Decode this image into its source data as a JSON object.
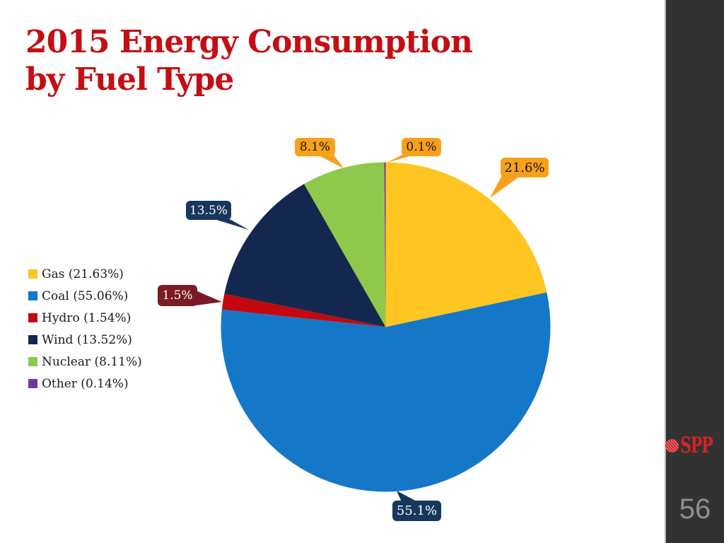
{
  "slide": {
    "title_line1": "2015 Energy Consumption",
    "title_line2": "by Fuel Type",
    "page_number": "56",
    "brand": "SPP"
  },
  "theme": {
    "title_color": "#C40E13",
    "callout_orange": "#F7A11A",
    "callout_navy": "#17375D",
    "callout_maroon": "#7A1B25",
    "sidebar_bg": "#323232",
    "page_number_color": "#8F8F8F",
    "brand_red": "#D2232A"
  },
  "legend": {
    "items": [
      {
        "label": "Gas (21.63%)",
        "color": "#FFC520"
      },
      {
        "label": "Coal (55.06%)",
        "color": "#1577C8"
      },
      {
        "label": "Hydro (1.54%)",
        "color": "#C4090E"
      },
      {
        "label": "Wind (13.52%)",
        "color": "#14284F"
      },
      {
        "label": "Nuclear (8.11%)",
        "color": "#8FC94C"
      },
      {
        "label": "Other (0.14%)",
        "color": "#70369E"
      }
    ]
  },
  "callouts": {
    "gas": "21.6%",
    "coal": "55.1%",
    "hydro": "1.5%",
    "wind": "13.5%",
    "nuclear": "8.1%",
    "other": "0.1%"
  },
  "chart_data": {
    "type": "pie",
    "title": "2015 Energy Consumption by Fuel Type",
    "labels": [
      "Gas",
      "Coal",
      "Hydro",
      "Wind",
      "Nuclear",
      "Other"
    ],
    "values": [
      21.63,
      55.06,
      1.54,
      13.52,
      8.11,
      0.14
    ],
    "colors": [
      "#FFC520",
      "#1577C8",
      "#C4090E",
      "#14284F",
      "#8FC94C",
      "#70369E"
    ],
    "data_labels": [
      "21.6%",
      "55.1%",
      "1.5%",
      "13.5%",
      "8.1%",
      "0.1%"
    ],
    "legend_entries": [
      "Gas (21.63%)",
      "Coal (55.06%)",
      "Hydro (1.54%)",
      "Wind (13.52%)",
      "Nuclear (8.11%)",
      "Other (0.14%)"
    ],
    "legend_position": "left",
    "start_angle_deg": 0,
    "direction": "clockwise"
  }
}
